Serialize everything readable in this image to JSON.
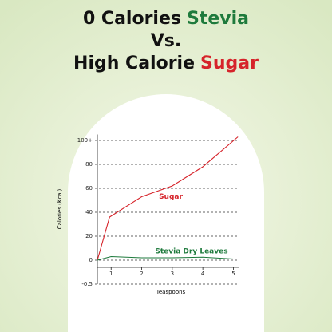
{
  "chart_data": {
    "type": "line",
    "title_lines": [
      [
        {
          "text": "0 Calories",
          "color": "#111111"
        },
        {
          "text": "Stevia",
          "color": "#1e7a3c"
        }
      ],
      [
        {
          "text": "Vs.",
          "color": "#111111"
        }
      ],
      [
        {
          "text": "High Calorie",
          "color": "#111111"
        },
        {
          "text": "Sugar",
          "color": "#d6232a"
        }
      ]
    ],
    "y_label": "Calories (Kcal)",
    "x_label": "Teaspoons",
    "xlim": [
      0.55,
      5.2
    ],
    "xticks": [
      1,
      2,
      3,
      4,
      5
    ],
    "ylim": [
      -0.5,
      105
    ],
    "yticks": [
      {
        "value": -0.5,
        "label": "-0.5"
      },
      0,
      20,
      40,
      60,
      80,
      {
        "value": 100,
        "label": "100+"
      }
    ],
    "grid": true,
    "series": [
      {
        "name": "Sugar",
        "color": "#d6232a",
        "x": [
          0.55,
          0.95,
          2,
          3,
          4,
          5.15
        ],
        "values": [
          0,
          36,
          53,
          62,
          78,
          103
        ]
      },
      {
        "name": "Stevia Dry Leaves",
        "color": "#1e7a3c",
        "x": [
          0.55,
          1,
          2,
          3,
          4,
          5
        ],
        "values": [
          0,
          3,
          2,
          2,
          2.5,
          1
        ]
      }
    ]
  }
}
